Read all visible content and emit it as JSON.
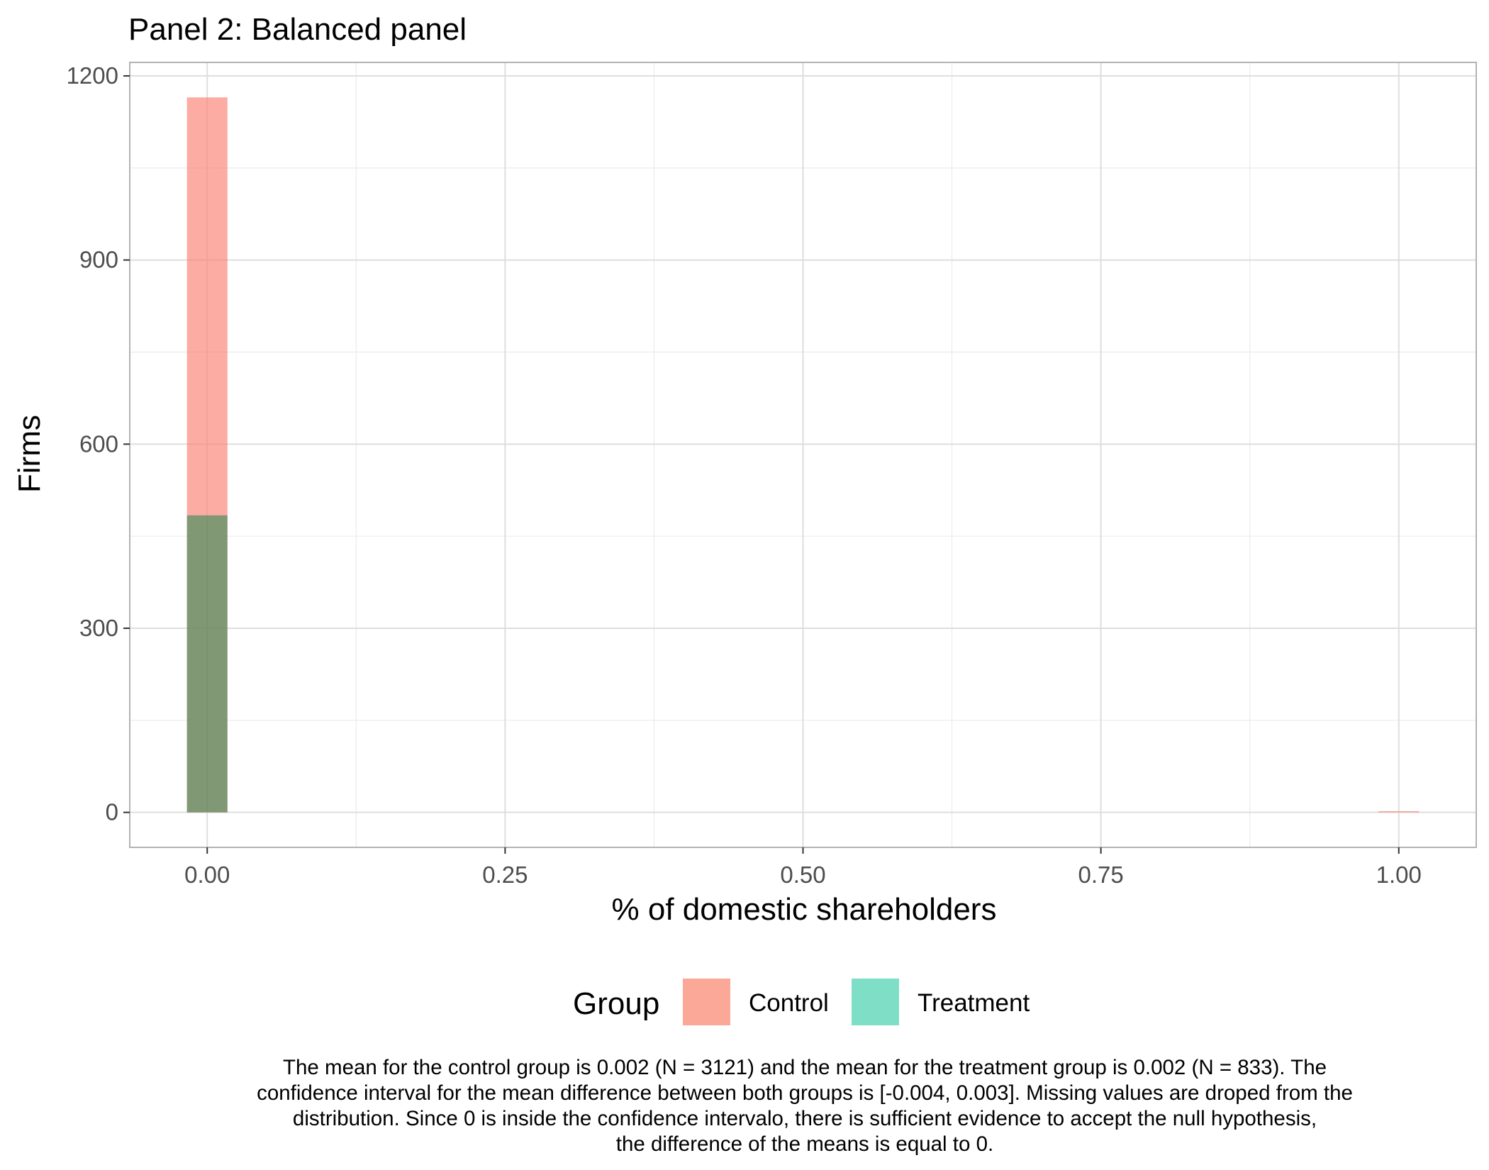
{
  "chart_data": {
    "type": "bar",
    "title": "Panel 2: Balanced panel",
    "xlabel": "% of domestic shareholders",
    "ylabel": "Firms",
    "xlim": [
      -0.065,
      1.065
    ],
    "ylim": [
      -57,
      1222
    ],
    "x_ticks": [
      "0.00",
      "0.25",
      "0.50",
      "0.75",
      "1.00"
    ],
    "x_tick_values": [
      0,
      0.25,
      0.5,
      0.75,
      1.0
    ],
    "y_ticks": [
      "0",
      "300",
      "600",
      "900",
      "1200"
    ],
    "y_tick_values": [
      0,
      300,
      600,
      900,
      1200
    ],
    "grid": true,
    "stacked": false,
    "bin_width": 0.034,
    "series": [
      {
        "name": "Control",
        "color": "#FA8072",
        "opacity": 0.65,
        "bins": [
          {
            "x": 0.0,
            "count": 1165
          },
          {
            "x": 1.0,
            "count": 2
          }
        ]
      },
      {
        "name": "Treatment",
        "color": "#2E8B57",
        "opacity": 0.6,
        "bins": [
          {
            "x": 0.0,
            "count": 484
          }
        ]
      }
    ],
    "legend": {
      "title": "Group",
      "position": "bottom",
      "items": [
        {
          "label": "Control",
          "color": "#FCA899"
        },
        {
          "label": "Treatment",
          "color": "#7FDFC6"
        }
      ]
    },
    "caption": [
      "The mean for the control group is 0.002 (N = 3121) and the mean for the treatment group is 0.002 (N = 833). The",
      "confidence interval for the mean difference between both groups is [-0.004, 0.003]. Missing values are droped from the",
      "distribution. Since 0 is inside the confidence intervalo, there is sufficient evidence to accept the null hypothesis,",
      "the difference of the means is equal to 0."
    ]
  }
}
